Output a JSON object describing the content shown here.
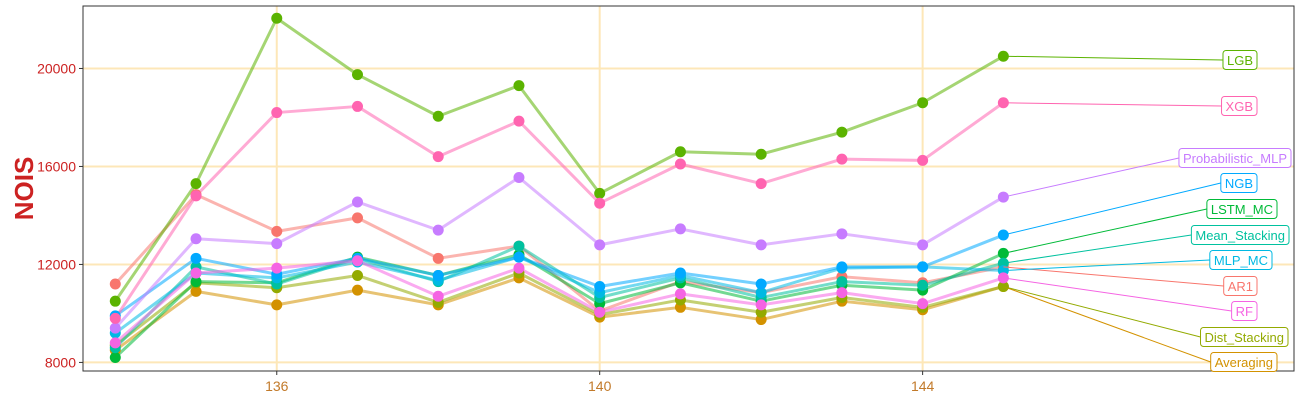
{
  "chart_data": {
    "type": "line",
    "title": "",
    "xlabel": "",
    "ylabel": "NOIS",
    "xlim": [
      133.6,
      148.6
    ],
    "ylim": [
      7650,
      22550
    ],
    "x_ticks": [
      136,
      140,
      144
    ],
    "y_ticks": [
      8000,
      12000,
      16000,
      20000
    ],
    "grid": true,
    "legend": "right-end-labels",
    "colors": {
      "axis_text_x": "#c27a2a",
      "axis_text_y": "#cc2222",
      "ylabel": "#cc2222",
      "grid": "#fde7b8",
      "frame": "#333333"
    },
    "x": [
      134,
      135,
      136,
      137,
      138,
      139,
      140,
      141,
      142,
      143,
      144,
      145
    ],
    "series": [
      {
        "name": "AR1",
        "color": "#F8766D",
        "values": [
          11200,
          14850,
          13350,
          13900,
          12250,
          12750,
          10100,
          11300,
          10850,
          11500,
          11250,
          11900
        ]
      },
      {
        "name": "Averaging",
        "color": "#D39200",
        "values": [
          8500,
          10900,
          10350,
          10950,
          10350,
          11450,
          9850,
          10250,
          9750,
          10500,
          10150,
          11100
        ]
      },
      {
        "name": "Dist_Stacking",
        "color": "#93AA00",
        "values": [
          8700,
          11250,
          11050,
          11550,
          10450,
          11650,
          9950,
          10550,
          10050,
          10650,
          10250,
          11100
        ]
      },
      {
        "name": "LGB",
        "color": "#5BB300",
        "values": [
          10500,
          15300,
          22050,
          19750,
          18050,
          19300,
          14900,
          16600,
          16500,
          17400,
          18600,
          20500
        ]
      },
      {
        "name": "LSTM_MC",
        "color": "#00BA38",
        "values": [
          8200,
          11300,
          11250,
          12300,
          11550,
          12400,
          10400,
          11250,
          10500,
          11150,
          10950,
          12450
        ]
      },
      {
        "name": "Mean_Stacking",
        "color": "#00C19F",
        "values": [
          8600,
          11900,
          11200,
          12250,
          11300,
          12750,
          10650,
          11450,
          10650,
          11300,
          11150,
          12050
        ]
      },
      {
        "name": "MLP_MC",
        "color": "#00B9E3",
        "values": [
          9200,
          11650,
          11450,
          12100,
          11350,
          12300,
          10850,
          11550,
          10850,
          11850,
          11900,
          11750
        ]
      },
      {
        "name": "NGB",
        "color": "#00A9FF",
        "values": [
          9900,
          12250,
          11600,
          12250,
          11550,
          12300,
          11100,
          11650,
          11200,
          11900,
          11900,
          13200
        ]
      },
      {
        "name": "Probabilistic_MLP",
        "color": "#C77CFF",
        "values": [
          9400,
          13050,
          12850,
          14550,
          13400,
          15550,
          12800,
          13450,
          12800,
          13250,
          12800,
          14750
        ]
      },
      {
        "name": "RF",
        "color": "#F564E3",
        "values": [
          8800,
          11650,
          11850,
          12150,
          10700,
          11850,
          10050,
          10800,
          10350,
          10850,
          10400,
          11450
        ]
      },
      {
        "name": "XGB",
        "color": "#FF64B0",
        "values": [
          9800,
          14800,
          18200,
          18450,
          16400,
          17850,
          14500,
          16100,
          15300,
          16300,
          16250,
          18600
        ]
      }
    ]
  }
}
